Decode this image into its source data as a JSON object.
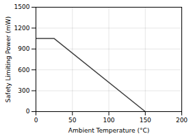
{
  "chart_data": {
    "type": "line",
    "x": [
      0,
      25,
      150
    ],
    "values": [
      1050,
      1050,
      0
    ],
    "color": "#404040",
    "line_style": "solid",
    "xlabel": "Ambient Temperature (°C)",
    "ylabel": "Safety Limiting Power (mW)",
    "xlim": [
      0,
      200
    ],
    "ylim": [
      0,
      1500
    ],
    "xticks": [
      0,
      50,
      100,
      150,
      200
    ],
    "yticks": [
      0,
      300,
      600,
      900,
      1200,
      1500
    ],
    "grid": true
  }
}
